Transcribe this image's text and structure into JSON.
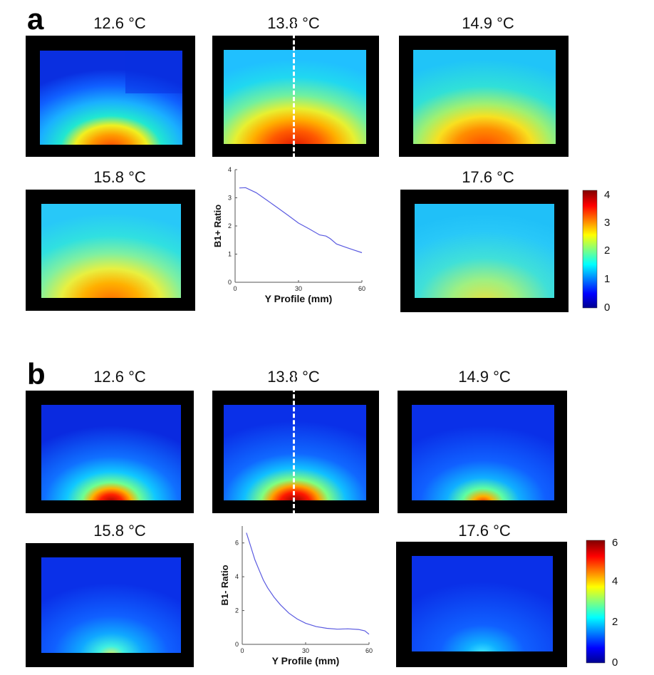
{
  "panels": [
    {
      "letter": "a",
      "temps": [
        "12.6 °C",
        "13.8 °C",
        "14.9 °C",
        "15.8 °C",
        "17.6 °C"
      ],
      "colorbar_ticks": [
        "0",
        "1",
        "2",
        "3",
        "4"
      ],
      "colormap": [
        "#00008f",
        "#0000ff",
        "#00ffff",
        "#ffff00",
        "#ff0000",
        "#800000"
      ]
    },
    {
      "letter": "b",
      "temps": [
        "12.6 °C",
        "13.8 °C",
        "14.9 °C",
        "15.8 °C",
        "17.6 °C"
      ],
      "colorbar_ticks": [
        "0",
        "2",
        "4",
        "6"
      ],
      "colormap": [
        "#00008f",
        "#0000ff",
        "#00ffff",
        "#ffff00",
        "#ff0000",
        "#800000"
      ]
    }
  ],
  "chart_data": [
    {
      "type": "line",
      "title": "",
      "xlabel": "Y Profile (mm)",
      "ylabel": "B1+ Ratio",
      "xlim": [
        0,
        60
      ],
      "ylim": [
        0,
        4
      ],
      "xticks": [
        "0",
        "30",
        "60"
      ],
      "yticks": [
        "0",
        "1",
        "2",
        "3",
        "4"
      ],
      "series": [
        {
          "name": "B1+ Ratio",
          "x": [
            2,
            5,
            10,
            15,
            20,
            25,
            30,
            35,
            40,
            43,
            45,
            48,
            52,
            56,
            60
          ],
          "y": [
            3.35,
            3.36,
            3.18,
            2.92,
            2.65,
            2.38,
            2.1,
            1.9,
            1.68,
            1.64,
            1.55,
            1.36,
            1.25,
            1.15,
            1.05
          ]
        }
      ],
      "line_color": "#5a5ae0"
    },
    {
      "type": "line",
      "title": "",
      "xlabel": "Y Profile (mm)",
      "ylabel": "B1- Ratio",
      "xlim": [
        0,
        60
      ],
      "ylim": [
        0,
        7
      ],
      "xticks": [
        "0",
        "30",
        "60"
      ],
      "yticks": [
        "0",
        "2",
        "4",
        "6"
      ],
      "series": [
        {
          "name": "B1- Ratio",
          "x": [
            2,
            4,
            6,
            8,
            10,
            12,
            15,
            18,
            22,
            26,
            30,
            35,
            40,
            45,
            50,
            55,
            58,
            60
          ],
          "y": [
            6.6,
            5.8,
            5.0,
            4.4,
            3.8,
            3.35,
            2.8,
            2.35,
            1.85,
            1.5,
            1.25,
            1.05,
            0.95,
            0.9,
            0.92,
            0.88,
            0.8,
            0.6
          ]
        }
      ],
      "line_color": "#5a5ae0"
    }
  ]
}
